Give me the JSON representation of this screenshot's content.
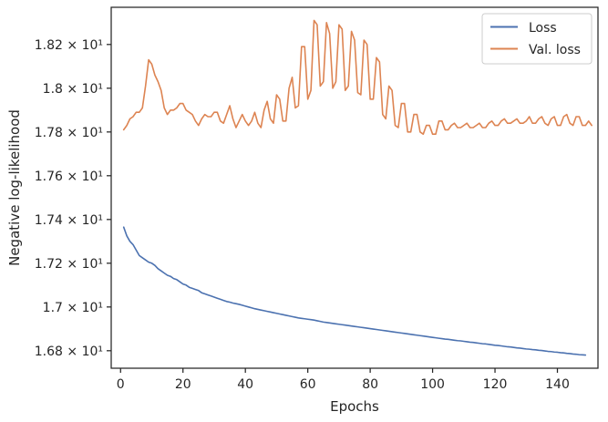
{
  "chart_data": {
    "type": "line",
    "xlabel": "Epochs",
    "ylabel": "Negative log-likelihood",
    "xlim": [
      -3,
      153
    ],
    "ylim": [
      16.72,
      18.37
    ],
    "x_ticks": [
      0,
      20,
      40,
      60,
      80,
      100,
      120,
      140
    ],
    "y_ticks": [
      {
        "value": 16.8,
        "label": "1.68 × 10¹"
      },
      {
        "value": 17.0,
        "label": "1.7 × 10¹"
      },
      {
        "value": 17.2,
        "label": "1.72 × 10¹"
      },
      {
        "value": 17.4,
        "label": "1.74 × 10¹"
      },
      {
        "value": 17.6,
        "label": "1.76 × 10¹"
      },
      {
        "value": 17.8,
        "label": "1.78 × 10¹"
      },
      {
        "value": 18.0,
        "label": "1.8 × 10¹"
      },
      {
        "value": 18.2,
        "label": "1.82 × 10¹"
      }
    ],
    "grid": false,
    "legend_position": "top-right",
    "series": [
      {
        "name": "Loss",
        "color": "#4c72b0",
        "x_start": 1,
        "values": [
          17.365,
          17.325,
          17.3,
          17.285,
          17.26,
          17.235,
          17.225,
          17.215,
          17.205,
          17.2,
          17.19,
          17.175,
          17.165,
          17.155,
          17.145,
          17.14,
          17.13,
          17.125,
          17.115,
          17.105,
          17.1,
          17.09,
          17.085,
          17.08,
          17.075,
          17.065,
          17.06,
          17.055,
          17.05,
          17.045,
          17.04,
          17.035,
          17.03,
          17.025,
          17.022,
          17.018,
          17.015,
          17.012,
          17.008,
          17.004,
          17.0,
          16.996,
          16.992,
          16.989,
          16.986,
          16.983,
          16.98,
          16.977,
          16.974,
          16.971,
          16.968,
          16.965,
          16.962,
          16.959,
          16.956,
          16.953,
          16.95,
          16.948,
          16.946,
          16.944,
          16.942,
          16.94,
          16.937,
          16.934,
          16.931,
          16.929,
          16.927,
          16.925,
          16.923,
          16.921,
          16.919,
          16.917,
          16.915,
          16.913,
          16.911,
          16.909,
          16.907,
          16.905,
          16.903,
          16.901,
          16.899,
          16.897,
          16.895,
          16.893,
          16.891,
          16.889,
          16.887,
          16.885,
          16.883,
          16.881,
          16.879,
          16.877,
          16.875,
          16.873,
          16.871,
          16.869,
          16.867,
          16.865,
          16.863,
          16.861,
          16.859,
          16.857,
          16.855,
          16.853,
          16.852,
          16.85,
          16.848,
          16.846,
          16.845,
          16.843,
          16.841,
          16.839,
          16.838,
          16.836,
          16.834,
          16.832,
          16.831,
          16.829,
          16.827,
          16.825,
          16.824,
          16.822,
          16.82,
          16.818,
          16.817,
          16.815,
          16.813,
          16.812,
          16.81,
          16.808,
          16.807,
          16.805,
          16.804,
          16.802,
          16.801,
          16.799,
          16.797,
          16.796,
          16.794,
          16.793,
          16.791,
          16.79,
          16.788,
          16.787,
          16.785,
          16.784,
          16.782,
          16.781,
          16.78
        ]
      },
      {
        "name": "Val. loss",
        "color": "#dd8452",
        "x_start": 1,
        "values": [
          17.81,
          17.83,
          17.86,
          17.87,
          17.89,
          17.89,
          17.91,
          18.01,
          18.13,
          18.11,
          18.06,
          18.03,
          17.99,
          17.91,
          17.88,
          17.9,
          17.9,
          17.91,
          17.93,
          17.93,
          17.9,
          17.89,
          17.88,
          17.85,
          17.83,
          17.86,
          17.88,
          17.87,
          17.87,
          17.89,
          17.89,
          17.85,
          17.84,
          17.88,
          17.92,
          17.86,
          17.82,
          17.85,
          17.88,
          17.85,
          17.83,
          17.85,
          17.89,
          17.84,
          17.82,
          17.9,
          17.94,
          17.86,
          17.84,
          17.97,
          17.95,
          17.85,
          17.85,
          18.0,
          18.05,
          17.91,
          17.92,
          18.19,
          18.19,
          17.95,
          17.99,
          18.31,
          18.29,
          18.01,
          18.03,
          18.3,
          18.25,
          18.0,
          18.03,
          18.29,
          18.27,
          17.99,
          18.01,
          18.26,
          18.22,
          17.98,
          17.97,
          18.22,
          18.2,
          17.95,
          17.95,
          18.14,
          18.12,
          17.88,
          17.86,
          18.01,
          17.99,
          17.83,
          17.82,
          17.93,
          17.93,
          17.8,
          17.8,
          17.88,
          17.88,
          17.8,
          17.79,
          17.83,
          17.83,
          17.79,
          17.79,
          17.85,
          17.85,
          17.81,
          17.81,
          17.83,
          17.84,
          17.82,
          17.82,
          17.83,
          17.84,
          17.82,
          17.82,
          17.83,
          17.84,
          17.82,
          17.82,
          17.84,
          17.85,
          17.83,
          17.83,
          17.85,
          17.86,
          17.84,
          17.84,
          17.85,
          17.86,
          17.84,
          17.84,
          17.85,
          17.87,
          17.84,
          17.84,
          17.86,
          17.87,
          17.84,
          17.83,
          17.86,
          17.87,
          17.83,
          17.83,
          17.87,
          17.88,
          17.84,
          17.83,
          17.87,
          17.87,
          17.83,
          17.83,
          17.85,
          17.83
        ]
      }
    ]
  }
}
